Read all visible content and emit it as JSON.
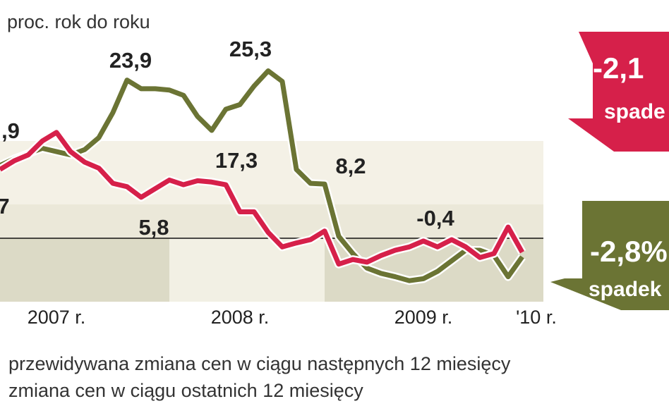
{
  "chart_data": {
    "type": "line",
    "subtitle": "proc. rok do roku",
    "categories": [
      null,
      null,
      null,
      null,
      "2007 r.",
      null,
      null,
      null,
      null,
      null,
      null,
      null,
      null,
      null,
      null,
      null,
      null,
      "2008 r.",
      null,
      null,
      null,
      null,
      null,
      null,
      null,
      null,
      null,
      null,
      null,
      null,
      "2009 r.",
      null,
      null,
      null,
      null,
      null,
      null,
      null,
      "'10 r."
    ],
    "series": [
      {
        "name": "przewidywana zmiana cen w ciągu następnych 12 miesięcy",
        "color": "#6b7434",
        "values": [
          11.0,
          12.0,
          12.8,
          13.6,
          13.1,
          12.6,
          13.4,
          15.2,
          19.0,
          23.9,
          22.6,
          22.6,
          22.4,
          21.6,
          18.4,
          16.3,
          19.5,
          20.2,
          23.0,
          25.3,
          23.7,
          10.4,
          8.3,
          8.2,
          0.3,
          -2.3,
          -4.5,
          -5.3,
          -5.8,
          -6.4,
          -6.1,
          -5.0,
          -3.4,
          -1.8,
          -1.8,
          -2.6,
          -5.8,
          -2.8,
          null
        ]
      },
      {
        "name": "zmiana cen w ciągu ostatnich 12 miesięcy",
        "color": "#d6204a",
        "values": [
          10.4,
          11.7,
          12.6,
          14.7,
          16.0,
          13.1,
          11.5,
          10.6,
          8.3,
          7.8,
          6.2,
          7.5,
          8.8,
          8.1,
          8.7,
          8.5,
          8.1,
          4.0,
          4.0,
          0.9,
          -1.3,
          -0.7,
          -0.2,
          1.1,
          -3.9,
          -3.2,
          -3.6,
          -2.6,
          -1.8,
          -1.3,
          -0.4,
          -1.3,
          -0.2,
          -1.3,
          -2.9,
          -2.3,
          1.7,
          -2.1,
          null
        ]
      }
    ],
    "ylim": [
      -10,
      36
    ],
    "annotations": [
      "23,9",
      "25,3",
      "17,3",
      "5,8",
      "8,2",
      "-0,4",
      ",9",
      "7"
    ],
    "badges": [
      "-2,1",
      "spade",
      "-2,8%",
      "spadek"
    ]
  }
}
